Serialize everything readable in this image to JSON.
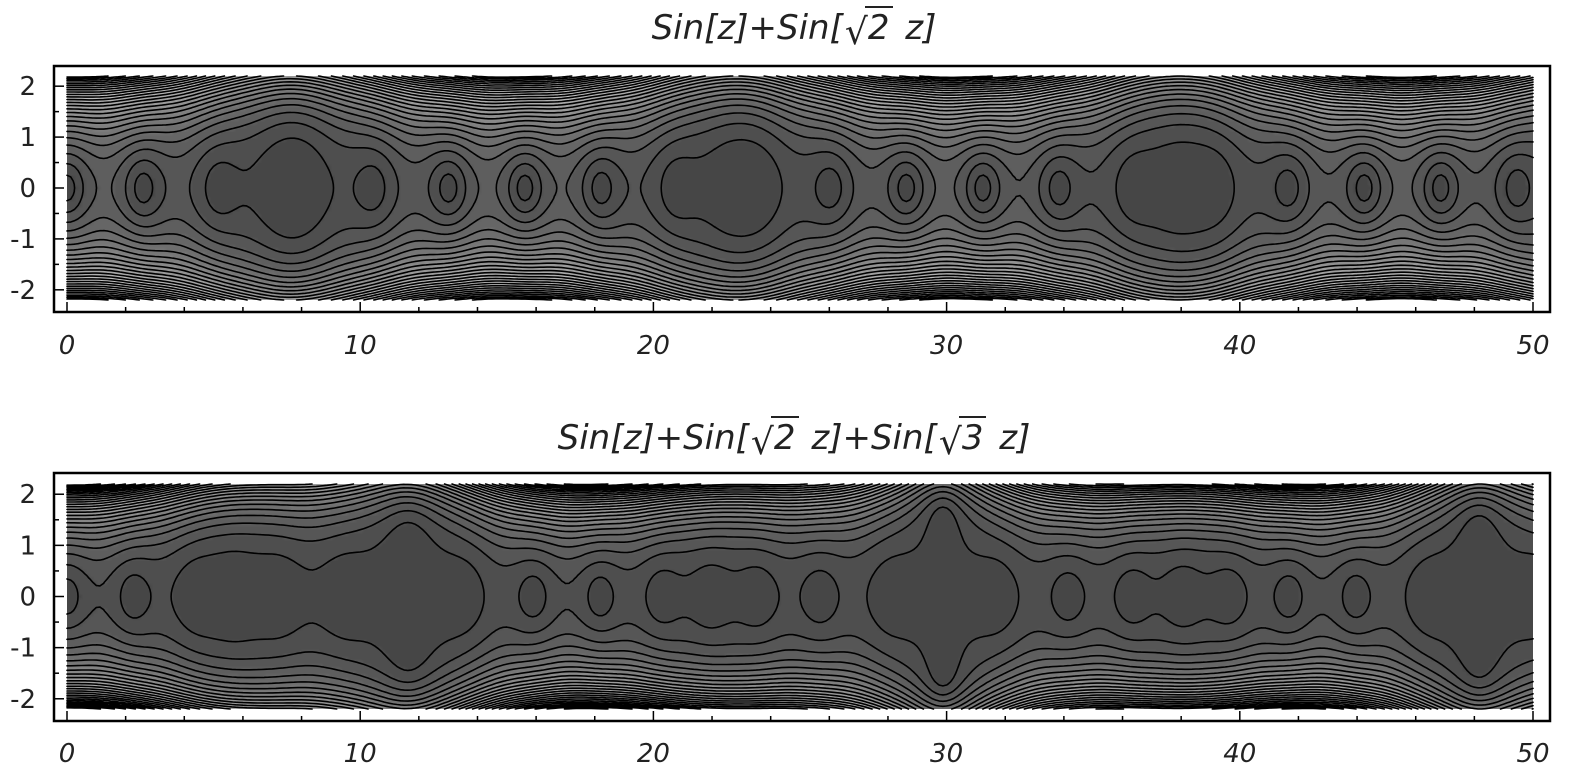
{
  "chart_data": [
    {
      "type": "heatmap",
      "subtype": "contour",
      "title_parts": [
        {
          "text": "Sin[z]+Sin["
        },
        {
          "radical": "2"
        },
        {
          "text": " z]"
        }
      ],
      "terms": [
        1,
        1.4142135623730951
      ],
      "xlim": [
        0,
        50
      ],
      "ylim": [
        -2.2,
        2.2
      ],
      "xticks": [
        0,
        10,
        20,
        30,
        40,
        50
      ],
      "yticks": [
        2,
        1,
        0,
        -1,
        -2
      ],
      "xtick_labels": [
        "0",
        "10",
        "20",
        "30",
        "40",
        "50"
      ],
      "ytick_labels": [
        "2",
        "1",
        "0",
        "-1",
        "-2"
      ],
      "colormap": "grayscale",
      "contour_color": "#000000",
      "grid": false
    },
    {
      "type": "heatmap",
      "subtype": "contour",
      "title_parts": [
        {
          "text": "Sin[z]+Sin["
        },
        {
          "radical": "2"
        },
        {
          "text": " z]+Sin["
        },
        {
          "radical": "3"
        },
        {
          "text": " z]"
        }
      ],
      "terms": [
        1,
        1.4142135623730951,
        1.7320508075688772
      ],
      "xlim": [
        0,
        50
      ],
      "ylim": [
        -2.2,
        2.2
      ],
      "xticks": [
        0,
        10,
        20,
        30,
        40,
        50
      ],
      "yticks": [
        2,
        1,
        0,
        -1,
        -2
      ],
      "xtick_labels": [
        "0",
        "10",
        "20",
        "30",
        "40",
        "50"
      ],
      "ytick_labels": [
        "2",
        "1",
        "0",
        "-1",
        "-2"
      ],
      "colormap": "grayscale",
      "contour_color": "#000000",
      "grid": false
    }
  ]
}
